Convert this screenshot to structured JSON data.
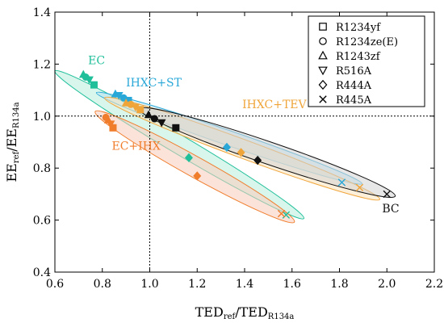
{
  "chart_data": {
    "type": "scatter",
    "xlabel": {
      "main": "TED",
      "sub1": "ref",
      "mid": "/TED",
      "sub2": "R134a"
    },
    "ylabel": {
      "main": "EE",
      "sub1": "ref",
      "mid": "/EE",
      "sub2": "R134a"
    },
    "xlim": [
      0.6,
      2.2
    ],
    "ylim": [
      0.4,
      1.4
    ],
    "x_ticks": [
      "0.6",
      "0.8",
      "1.0",
      "1.2",
      "1.4",
      "1.6",
      "1.8",
      "2.0",
      "2.2"
    ],
    "y_ticks": [
      "0.4",
      "0.6",
      "0.8",
      "1.0",
      "1.2",
      "1.4"
    ],
    "x_tick_values": [
      0.6,
      0.8,
      1.0,
      1.2,
      1.4,
      1.6,
      1.8,
      2.0,
      2.2
    ],
    "y_tick_values": [
      0.4,
      0.6,
      0.8,
      1.0,
      1.2,
      1.4
    ],
    "reference_lines": {
      "x": 1.0,
      "y": 1.0
    },
    "grid": false,
    "legend_position": "top-right",
    "legend": [
      {
        "label": "R1234yf",
        "marker": "square"
      },
      {
        "label": "R1234ze(E)",
        "marker": "circle"
      },
      {
        "label": "R1243zf",
        "marker": "triangle-up"
      },
      {
        "label": "R516A",
        "marker": "triangle-down"
      },
      {
        "label": "R444A",
        "marker": "diamond"
      },
      {
        "label": "R445A",
        "marker": "x"
      }
    ],
    "groups": [
      {
        "name": "EC",
        "color": "#1fbf9a",
        "fill": "#b9eedd",
        "label_xy": [
          0.74,
          1.2
        ],
        "ellipse": {
          "cx": 1.125,
          "cy": 0.89,
          "rx": 0.525,
          "ry": 0.042,
          "angle_data": -0.5405
        },
        "points": [
          {
            "series": "R1243zf",
            "x": 0.72,
            "y": 1.16
          },
          {
            "series": "R1234ze(E)",
            "x": 0.73,
            "y": 1.15
          },
          {
            "series": "R516A",
            "x": 0.745,
            "y": 1.14
          },
          {
            "series": "R1234yf",
            "x": 0.765,
            "y": 1.12
          },
          {
            "series": "R444A",
            "x": 1.165,
            "y": 0.84
          },
          {
            "series": "R445A",
            "x": 1.575,
            "y": 0.62
          }
        ]
      },
      {
        "name": "IHXC+ST",
        "color": "#29a8d8",
        "fill": "#b6e2f2",
        "label_xy": [
          0.9,
          1.115
        ],
        "ellipse": {
          "cx": 1.335,
          "cy": 0.915,
          "rx": 0.56,
          "ry": 0.03,
          "angle_data": -0.3125
        },
        "points": [
          {
            "series": "R1243zf",
            "x": 0.855,
            "y": 1.085
          },
          {
            "series": "R516A",
            "x": 0.87,
            "y": 1.08
          },
          {
            "series": "R1234ze(E)",
            "x": 0.89,
            "y": 1.07
          },
          {
            "series": "R1234yf",
            "x": 0.91,
            "y": 1.06
          },
          {
            "series": "R444A",
            "x": 1.325,
            "y": 0.88
          },
          {
            "series": "R445A",
            "x": 1.81,
            "y": 0.745
          }
        ]
      },
      {
        "name": "IHXC+TEV",
        "color": "#f0a53a",
        "fill": "#fbe3bd",
        "label_xy": [
          1.39,
          1.03
        ],
        "ellipse": {
          "cx": 1.39,
          "cy": 0.875,
          "rx": 0.58,
          "ry": 0.038,
          "angle_data": -0.3365
        },
        "points": [
          {
            "series": "R1243zf",
            "x": 0.9,
            "y": 1.05
          },
          {
            "series": "R1234ze(E)",
            "x": 0.92,
            "y": 1.045
          },
          {
            "series": "R516A",
            "x": 0.94,
            "y": 1.035
          },
          {
            "series": "R1234yf",
            "x": 0.96,
            "y": 1.025
          },
          {
            "series": "R444A",
            "x": 1.385,
            "y": 0.86
          },
          {
            "series": "R445A",
            "x": 1.885,
            "y": 0.725
          }
        ]
      },
      {
        "name": "EC+IHX",
        "color": "#f07d2c",
        "fill": "#f8ccbb",
        "label_xy": [
          0.84,
          0.87
        ],
        "ellipse": {
          "cx": 1.19,
          "cy": 0.805,
          "rx": 0.42,
          "ry": 0.045,
          "angle_data": -0.5063
        },
        "points": [
          {
            "series": "R1234ze(E)",
            "x": 0.815,
            "y": 0.995
          },
          {
            "series": "R1243zf",
            "x": 0.825,
            "y": 0.985
          },
          {
            "series": "R516A",
            "x": 0.835,
            "y": 0.97
          },
          {
            "series": "R1234yf",
            "x": 0.845,
            "y": 0.955
          },
          {
            "series": "R444A",
            "x": 1.2,
            "y": 0.77
          },
          {
            "series": "R445A",
            "x": 1.555,
            "y": 0.625
          }
        ]
      },
      {
        "name": "BC",
        "color": "#111111",
        "fill": "#d3d3d3",
        "label_xy": [
          1.98,
          0.63
        ],
        "ellipse": {
          "cx": 1.495,
          "cy": 0.86,
          "rx": 0.54,
          "ry": 0.045,
          "angle_data": -0.3108
        },
        "points": [
          {
            "series": "R1243zf",
            "x": 0.995,
            "y": 1.005
          },
          {
            "series": "R1234ze(E)",
            "x": 1.02,
            "y": 0.99
          },
          {
            "series": "R516A",
            "x": 1.05,
            "y": 0.975
          },
          {
            "series": "R1234yf",
            "x": 1.11,
            "y": 0.955
          },
          {
            "series": "R444A",
            "x": 1.455,
            "y": 0.83
          },
          {
            "series": "R445A",
            "x": 2.0,
            "y": 0.7
          }
        ]
      }
    ]
  }
}
